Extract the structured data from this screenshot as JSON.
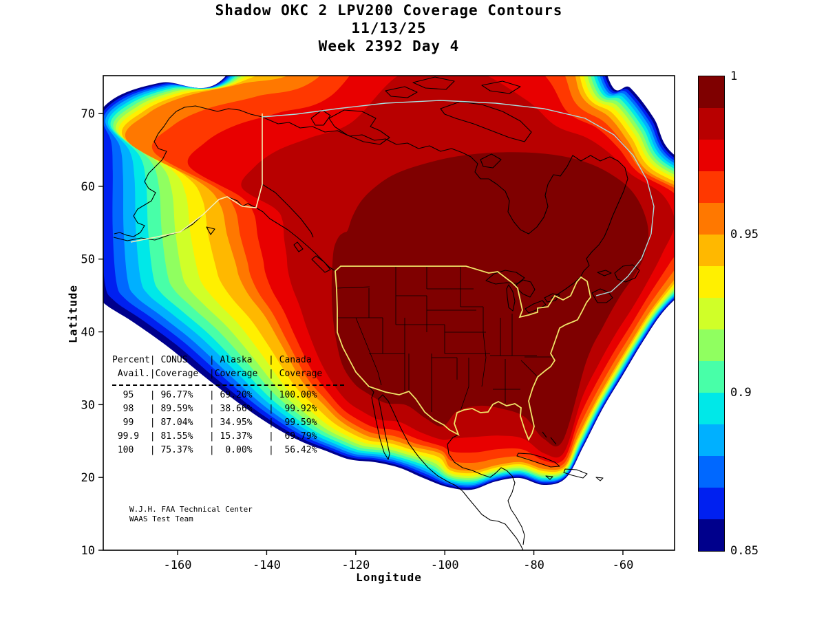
{
  "title": {
    "line1": "Shadow OKC 2 LPV200 Coverage Contours",
    "line2": "11/13/25",
    "line3": "Week 2392 Day 4"
  },
  "axes": {
    "xlabel": "Longitude",
    "ylabel": "Latitude",
    "x_tick_labels": [
      "-160",
      "-140",
      "-120",
      "-100",
      "-80",
      "-60"
    ],
    "x_tick_values": [
      -160,
      -140,
      -120,
      -100,
      -80,
      -60
    ],
    "y_tick_labels": [
      "10",
      "20",
      "30",
      "40",
      "50",
      "60",
      "70"
    ],
    "y_tick_values": [
      10,
      20,
      30,
      40,
      50,
      60,
      70
    ]
  },
  "colorbar": {
    "min": 0.85,
    "max": 1,
    "tick_labels": [
      "1",
      "0.95",
      "0.9",
      "0.85"
    ],
    "tick_values": [
      1,
      0.95,
      0.9,
      0.85
    ]
  },
  "coverage_table": {
    "lines": [
      "Percent| CONUS    | Alaska   | Canada",
      " Avail.|Coverage  |Coverage  | Coverage",
      "  95   | 96.77%   | 69.20%   | 100.00%",
      "  98   | 89.59%   | 38.66%   |  99.92%",
      "  99   | 87.04%   | 34.95%   |  99.59%",
      " 99.9  | 81.55%   | 15.37%   |  69.79%",
      " 100   | 75.37%   |  0.00%   |  56.42%"
    ]
  },
  "credit": {
    "line1": "W.J.H. FAA Technical Center",
    "line2": "WAAS Test Team"
  },
  "chart_data": {
    "type": "heatmap",
    "subtype": "geographic-contour-map",
    "title": "Shadow OKC 2 LPV200 Coverage Contours",
    "date": "11/13/25",
    "week_day": "Week 2392 Day 4",
    "xlabel": "Longitude",
    "ylabel": "Latitude",
    "xlim": [
      -177,
      -48
    ],
    "ylim": [
      10,
      75
    ],
    "grid": false,
    "colorbar_range": [
      0.85,
      1.0
    ],
    "colorbar_ticks": [
      0.85,
      0.9,
      0.95,
      1.0
    ],
    "contour_levels": [
      0.85,
      0.86,
      0.87,
      0.88,
      0.89,
      0.9,
      0.91,
      0.92,
      0.93,
      0.94,
      0.95,
      0.96,
      0.97,
      0.98,
      0.99,
      1.0
    ],
    "colormap": "jet",
    "colormap_colors": [
      "#00008C",
      "#0020F0",
      "#0068FF",
      "#00B0FF",
      "#00E8E8",
      "#48FFA8",
      "#90FF60",
      "#D0FF28",
      "#FFF000",
      "#FFB800",
      "#FF7800",
      "#FF3800",
      "#E80000",
      "#B80000",
      "#7F0000"
    ],
    "boundary_colors": {
      "conus_outline": "#f0e468",
      "alaska_outline": "#f6f0b2",
      "canada_outline": "#a8dede",
      "coastline": "#000000"
    },
    "description": "LPV200 availability contours over North America: dark-red core (>=0.99) covering CONUS and most of Canada, rainbow fringe decreasing to 0.85 along the Pacific, Atlantic, Gulf of Mexico and Arctic edges",
    "coverage_table": {
      "columns": [
        "Percent Avail.",
        "CONUS Coverage",
        "Alaska Coverage",
        "Canada Coverage"
      ],
      "rows": [
        [
          "95",
          "96.77%",
          "69.20%",
          "100.00%"
        ],
        [
          "98",
          "89.59%",
          "38.66%",
          "99.92%"
        ],
        [
          "99",
          "87.04%",
          "34.95%",
          "99.59%"
        ],
        [
          "99.9",
          "81.55%",
          "15.37%",
          "69.79%"
        ],
        [
          "100",
          "75.37%",
          "0.00%",
          "56.42%"
        ]
      ]
    }
  }
}
